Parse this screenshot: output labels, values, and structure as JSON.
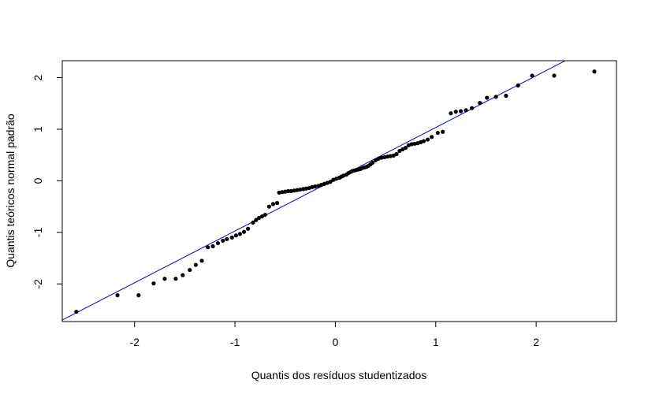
{
  "chart_data": {
    "type": "scatter",
    "title": "",
    "xlabel": "Quantis dos resíduos studentizados",
    "ylabel": "Quantis teóricos normal padrão",
    "xlim": [
      -2.72,
      2.8
    ],
    "ylim": [
      -2.73,
      2.33
    ],
    "x_ticks": [
      -2,
      -1,
      0,
      1,
      2
    ],
    "y_ticks": [
      -2,
      -1,
      0,
      1,
      2
    ],
    "x_tick_labels": [
      "-2",
      "-1",
      "0",
      "1",
      "2"
    ],
    "y_tick_labels": [
      "-2",
      "-1",
      "0",
      "1",
      "2"
    ],
    "grid": false,
    "point_color": "#000000",
    "line_color": "#0000cc",
    "reference_line": {
      "intercept": 0.03,
      "slope": 1.004
    },
    "points": [
      [
        -2.58,
        -2.54
      ],
      [
        -2.17,
        -2.22
      ],
      [
        -1.96,
        -2.22
      ],
      [
        -1.81,
        -1.99
      ],
      [
        -1.7,
        -1.9
      ],
      [
        -1.59,
        -1.9
      ],
      [
        -1.52,
        -1.83
      ],
      [
        -1.45,
        -1.73
      ],
      [
        -1.39,
        -1.63
      ],
      [
        -1.33,
        -1.55
      ],
      [
        -1.27,
        -1.29
      ],
      [
        -1.22,
        -1.27
      ],
      [
        -1.17,
        -1.21
      ],
      [
        -1.12,
        -1.16
      ],
      [
        -1.08,
        -1.13
      ],
      [
        -1.03,
        -1.1
      ],
      [
        -0.99,
        -1.06
      ],
      [
        -0.95,
        -1.03
      ],
      [
        -0.91,
        -0.99
      ],
      [
        -0.87,
        -0.93
      ],
      [
        -0.82,
        -0.81
      ],
      [
        -0.79,
        -0.76
      ],
      [
        -0.76,
        -0.72
      ],
      [
        -0.73,
        -0.69
      ],
      [
        -0.7,
        -0.66
      ],
      [
        -0.66,
        -0.5
      ],
      [
        -0.62,
        -0.45
      ],
      [
        -0.58,
        -0.43
      ],
      [
        -0.56,
        -0.23
      ],
      [
        -0.53,
        -0.22
      ],
      [
        -0.5,
        -0.21
      ],
      [
        -0.47,
        -0.2
      ],
      [
        -0.44,
        -0.2
      ],
      [
        -0.41,
        -0.19
      ],
      [
        -0.38,
        -0.18
      ],
      [
        -0.35,
        -0.17
      ],
      [
        -0.32,
        -0.16
      ],
      [
        -0.29,
        -0.15
      ],
      [
        -0.26,
        -0.14
      ],
      [
        -0.23,
        -0.12
      ],
      [
        -0.2,
        -0.11
      ],
      [
        -0.17,
        -0.1
      ],
      [
        -0.14,
        -0.08
      ],
      [
        -0.11,
        -0.06
      ],
      [
        -0.08,
        -0.04
      ],
      [
        -0.05,
        -0.02
      ],
      [
        -0.02,
        0.02
      ],
      [
        0.01,
        0.04
      ],
      [
        0.04,
        0.06
      ],
      [
        0.06,
        0.08
      ],
      [
        0.08,
        0.1
      ],
      [
        0.11,
        0.12
      ],
      [
        0.13,
        0.15
      ],
      [
        0.15,
        0.17
      ],
      [
        0.17,
        0.19
      ],
      [
        0.19,
        0.2
      ],
      [
        0.21,
        0.21
      ],
      [
        0.23,
        0.22
      ],
      [
        0.25,
        0.23
      ],
      [
        0.27,
        0.25
      ],
      [
        0.29,
        0.26
      ],
      [
        0.31,
        0.27
      ],
      [
        0.33,
        0.29
      ],
      [
        0.35,
        0.32
      ],
      [
        0.37,
        0.35
      ],
      [
        0.4,
        0.4
      ],
      [
        0.43,
        0.43
      ],
      [
        0.46,
        0.45
      ],
      [
        0.49,
        0.46
      ],
      [
        0.52,
        0.47
      ],
      [
        0.55,
        0.48
      ],
      [
        0.58,
        0.49
      ],
      [
        0.61,
        0.52
      ],
      [
        0.64,
        0.58
      ],
      [
        0.67,
        0.61
      ],
      [
        0.7,
        0.64
      ],
      [
        0.73,
        0.69
      ],
      [
        0.76,
        0.71
      ],
      [
        0.79,
        0.72
      ],
      [
        0.82,
        0.73
      ],
      [
        0.85,
        0.75
      ],
      [
        0.88,
        0.77
      ],
      [
        0.92,
        0.8
      ],
      [
        0.96,
        0.85
      ],
      [
        1.02,
        0.93
      ],
      [
        1.07,
        0.95
      ],
      [
        1.15,
        1.31
      ],
      [
        1.2,
        1.34
      ],
      [
        1.25,
        1.35
      ],
      [
        1.3,
        1.37
      ],
      [
        1.36,
        1.41
      ],
      [
        1.44,
        1.51
      ],
      [
        1.51,
        1.61
      ],
      [
        1.6,
        1.63
      ],
      [
        1.7,
        1.65
      ],
      [
        1.82,
        1.85
      ],
      [
        1.96,
        2.04
      ],
      [
        2.18,
        2.04
      ],
      [
        2.58,
        2.12
      ]
    ]
  }
}
